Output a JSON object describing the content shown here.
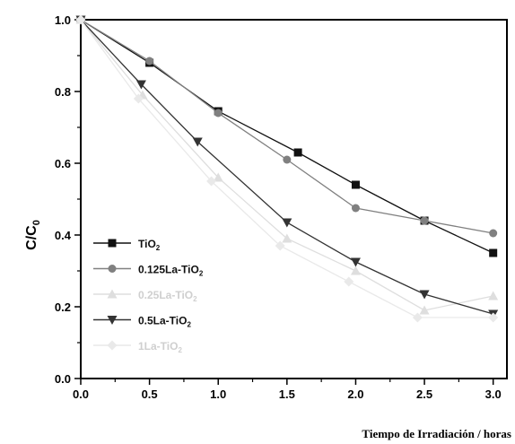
{
  "chart_data": {
    "type": "line",
    "xlabel": "Tiempo de Irradiación / horas",
    "ylabel": {
      "main": "C/C",
      "sub": "0"
    },
    "xlim": [
      0.0,
      3.1
    ],
    "ylim": [
      0.0,
      1.0
    ],
    "x_ticks": [
      "0.0",
      "0.5",
      "1.0",
      "1.5",
      "2.0",
      "2.5",
      "3.0"
    ],
    "y_ticks": [
      "0.0",
      "0.2",
      "0.4",
      "0.6",
      "0.8",
      "1.0"
    ],
    "grid": false,
    "legend_position": "lower-left",
    "series": [
      {
        "name": {
          "main": "TiO",
          "sub": "2"
        },
        "marker": "square",
        "color": "#111111",
        "x": [
          0.0,
          0.5,
          1.0,
          1.58,
          2.0,
          2.5,
          3.0
        ],
        "y": [
          1.0,
          0.88,
          0.745,
          0.63,
          0.54,
          0.44,
          0.35
        ]
      },
      {
        "name": {
          "main": "0.125La-TiO",
          "sub": "2"
        },
        "marker": "circle",
        "color": "#808080",
        "x": [
          0.0,
          0.5,
          1.0,
          1.5,
          2.0,
          2.5,
          3.0
        ],
        "y": [
          1.0,
          0.885,
          0.74,
          0.61,
          0.475,
          0.44,
          0.405
        ]
      },
      {
        "name": {
          "main": "0.25La-TiO",
          "sub": "2"
        },
        "marker": "triangle-up",
        "color": "#dedede",
        "x": [
          0.0,
          0.45,
          1.0,
          1.5,
          2.0,
          2.5,
          3.0
        ],
        "y": [
          1.0,
          0.79,
          0.56,
          0.39,
          0.3,
          0.19,
          0.23
        ]
      },
      {
        "name": {
          "main": "0.5La-TiO",
          "sub": "2"
        },
        "marker": "triangle-down",
        "color": "#333333",
        "x": [
          0.0,
          0.44,
          0.85,
          1.5,
          2.0,
          2.5,
          3.0
        ],
        "y": [
          1.0,
          0.82,
          0.66,
          0.435,
          0.325,
          0.235,
          0.18
        ]
      },
      {
        "name": {
          "main": "1La-TiO",
          "sub": "2"
        },
        "marker": "diamond",
        "color": "#e9e9e9",
        "x": [
          0.0,
          0.42,
          0.95,
          1.45,
          1.95,
          2.45,
          3.0
        ],
        "y": [
          1.0,
          0.78,
          0.55,
          0.37,
          0.27,
          0.17,
          0.17
        ]
      }
    ]
  }
}
